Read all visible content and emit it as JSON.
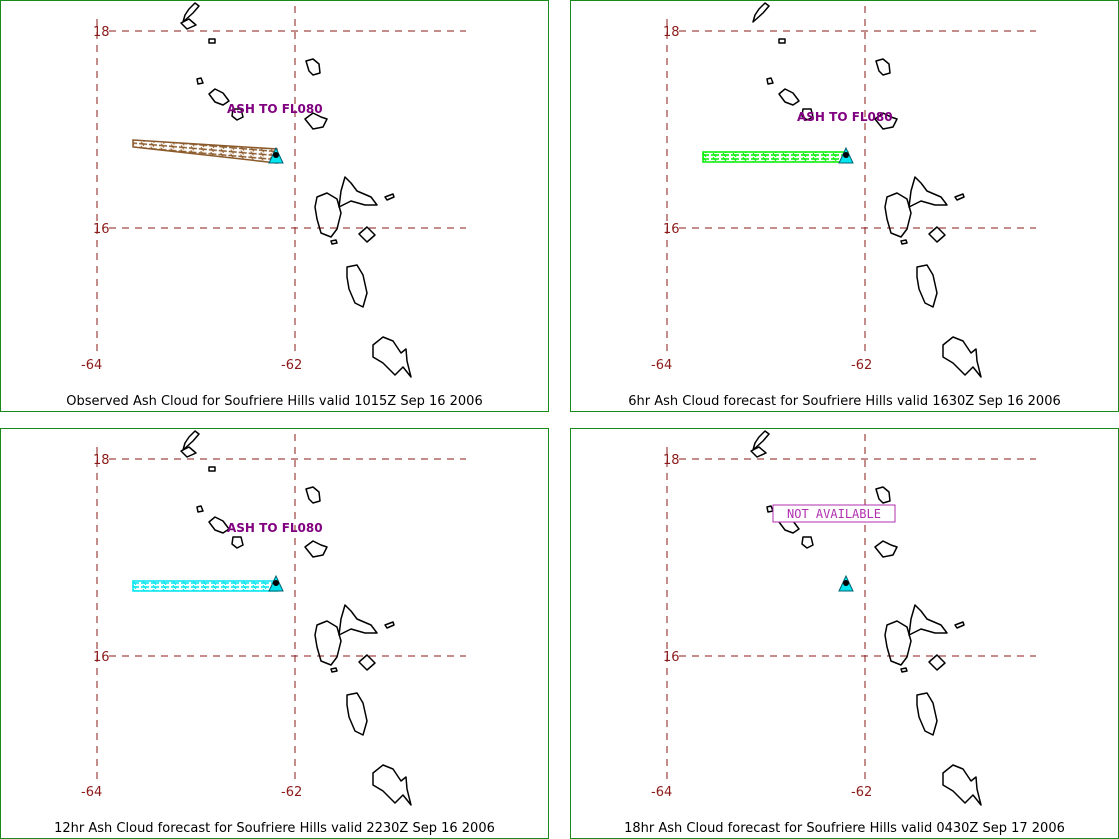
{
  "map": {
    "lat_labels": [
      "18",
      "16"
    ],
    "lon_labels": [
      "-64",
      "-62"
    ]
  },
  "colors": {
    "frame": "#1a8a1a",
    "grid": "#8b1a1a",
    "label": "#800080",
    "observed_ash": "#8b5a2b",
    "forecast_6hr_ash": "#00ee00",
    "forecast_12hr_ash": "#00e5ee",
    "volcano": "#00e5ee"
  },
  "panels": [
    {
      "caption": "Observed Ash Cloud for Soufriere  Hills valid 1015Z Sep 16 2006",
      "ash_label": "ASH TO FL080"
    },
    {
      "caption": "6hr Ash Cloud forecast for Soufriere  Hills valid 1630Z Sep 16 2006",
      "ash_label": "ASH TO FL080"
    },
    {
      "caption": "12hr Ash Cloud forecast for Soufriere  Hills valid 2230Z Sep 16 2006",
      "ash_label": "ASH TO FL080"
    },
    {
      "caption": "18hr Ash Cloud forecast for Soufriere  Hills valid 0430Z Sep 17 2006",
      "ash_label": "NOT AVAILABLE"
    }
  ]
}
